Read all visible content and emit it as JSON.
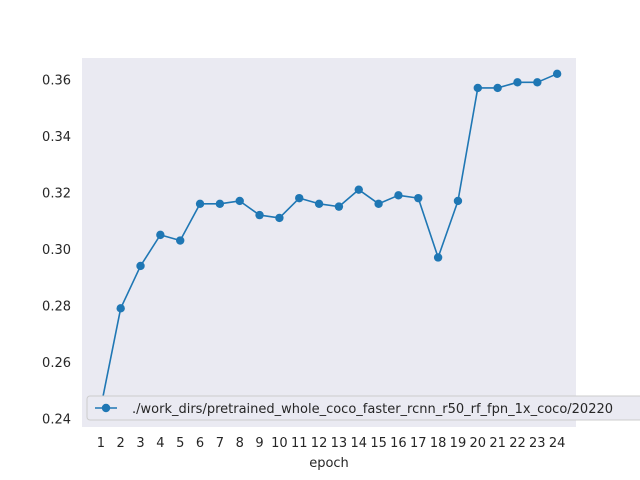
{
  "chart_data": {
    "type": "line",
    "title": "",
    "xlabel": "epoch",
    "ylabel": "",
    "x": [
      1,
      2,
      3,
      4,
      5,
      6,
      7,
      8,
      9,
      10,
      11,
      12,
      13,
      14,
      15,
      16,
      17,
      18,
      19,
      20,
      21,
      22,
      23,
      24
    ],
    "series": [
      {
        "name": "./work_dirs/pretrained_whole_coco_faster_rcnn_r50_rf_fpn_1x_coco/20220",
        "values": [
          0.244,
          0.279,
          0.294,
          0.305,
          0.303,
          0.316,
          0.316,
          0.317,
          0.312,
          0.311,
          0.318,
          0.316,
          0.315,
          0.321,
          0.316,
          0.319,
          0.318,
          0.297,
          0.317,
          0.357,
          0.357,
          0.359,
          0.359,
          0.362
        ],
        "color": "#1f77b4"
      }
    ],
    "xticks": [
      "1",
      "2",
      "3",
      "4",
      "5",
      "6",
      "7",
      "8",
      "9",
      "10",
      "11",
      "12",
      "13",
      "14",
      "15",
      "16",
      "17",
      "18",
      "19",
      "20",
      "21",
      "22",
      "23",
      "24"
    ],
    "yticks": [
      "0.24",
      "0.26",
      "0.28",
      "0.30",
      "0.32",
      "0.34",
      "0.36"
    ],
    "ylim": [
      0.237,
      0.3676
    ],
    "xlim": [
      0.05,
      24.95
    ],
    "grid": false,
    "legend_position": "lower-left",
    "plot_background": "#eaeaf2"
  }
}
